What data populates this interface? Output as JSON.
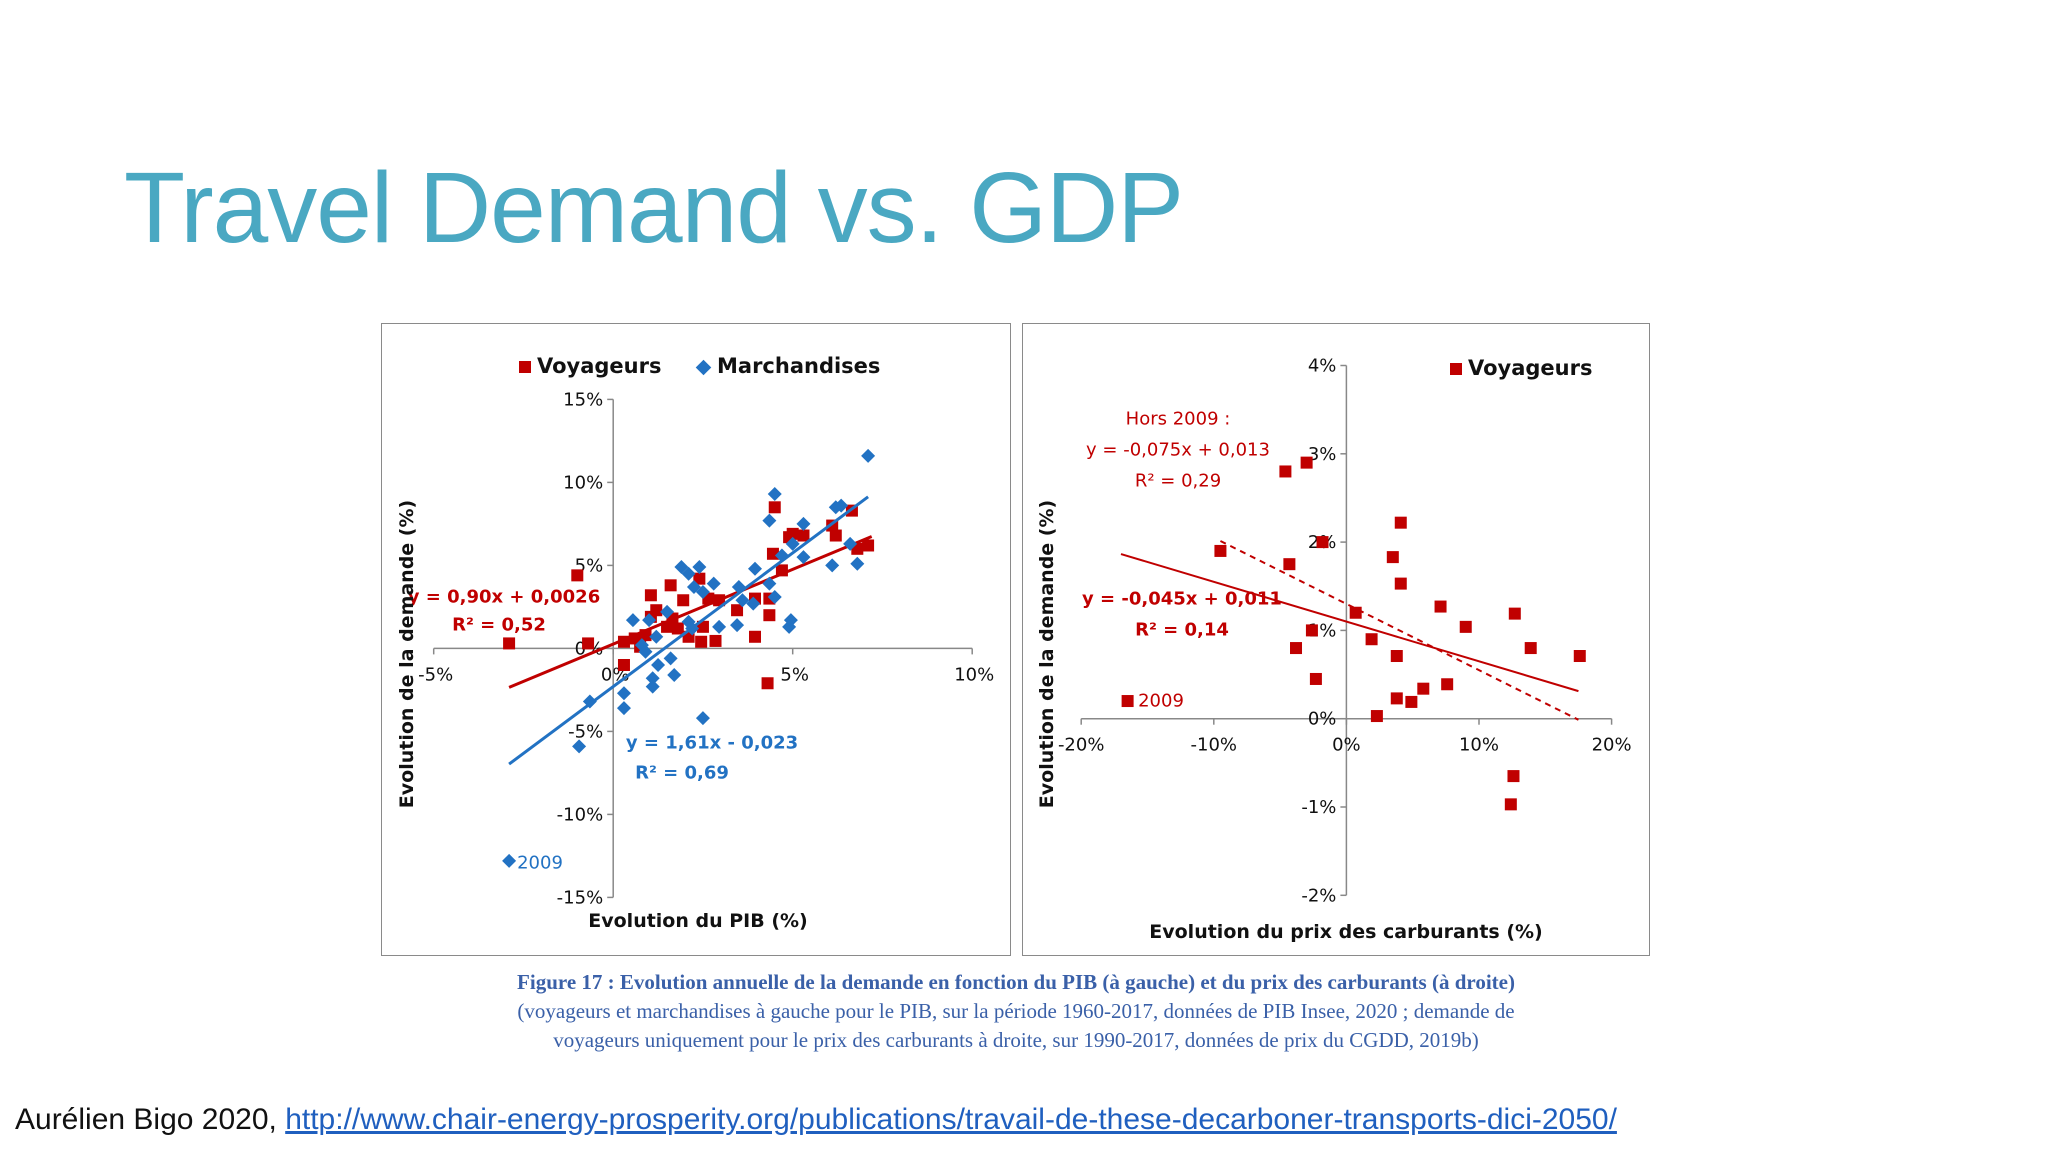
{
  "title": "Travel Demand vs. GDP",
  "caption": {
    "line1": "Figure 17 : Evolution annuelle de la demande en fonction du PIB (à gauche) et du prix des carburants (à droite)",
    "line2": "(voyageurs et marchandises à gauche pour le PIB, sur la période 1960-2017, données de PIB Insee, 2020 ; demande de",
    "line3": "voyageurs uniquement pour le prix des carburants à droite, sur 1990-2017, données de prix du CGDD, 2019b)"
  },
  "footer": {
    "credit": "Aurélien Bigo 2020, ",
    "link": "http://www.chair-energy-prosperity.org/publications/travail-de-these-decarboner-transports-dici-2050/"
  },
  "colors": {
    "title": "#4aa8c2",
    "voyageurs": "#c00000",
    "marchandises": "#2272c3",
    "caption": "#3a60a8"
  },
  "chart_data": [
    {
      "type": "scatter",
      "xlabel": "Evolution du PIB (%)",
      "ylabel": "Evolution de la demande (%)",
      "xlim": [
        -5,
        10
      ],
      "ylim": [
        -15,
        15
      ],
      "xticks": [
        "-5%",
        "0%",
        "5%",
        "10%"
      ],
      "yticks": [
        "-15%",
        "-10%",
        "-5%",
        "0%",
        "5%",
        "10%",
        "15%"
      ],
      "legend": "top",
      "series": [
        {
          "name": "Voyageurs",
          "marker": "square",
          "color": "#c00000",
          "points": [
            [
              -2.9,
              0.3
            ],
            [
              -1.0,
              4.4
            ],
            [
              -0.7,
              0.3
            ],
            [
              0.3,
              -1.0
            ],
            [
              0.3,
              0.4
            ],
            [
              0.6,
              0.6
            ],
            [
              0.9,
              0.8
            ],
            [
              0.75,
              0.1
            ],
            [
              1.05,
              3.2
            ],
            [
              1.05,
              1.9
            ],
            [
              1.2,
              2.3
            ],
            [
              1.6,
              3.8
            ],
            [
              1.5,
              1.3
            ],
            [
              1.65,
              1.8
            ],
            [
              1.8,
              1.2
            ],
            [
              1.95,
              2.9
            ],
            [
              2.1,
              0.7
            ],
            [
              2.4,
              4.2
            ],
            [
              2.5,
              1.3
            ],
            [
              2.45,
              0.4
            ],
            [
              2.65,
              3.0
            ],
            [
              2.85,
              0.45
            ],
            [
              2.95,
              2.9
            ],
            [
              3.45,
              2.3
            ],
            [
              3.95,
              3.0
            ],
            [
              3.95,
              0.7
            ],
            [
              4.35,
              2.0
            ],
            [
              4.3,
              -2.1
            ],
            [
              4.35,
              3.0
            ],
            [
              4.45,
              5.7
            ],
            [
              4.5,
              8.5
            ],
            [
              4.7,
              4.7
            ],
            [
              4.9,
              6.7
            ],
            [
              5.0,
              6.9
            ],
            [
              5.3,
              6.8
            ],
            [
              6.1,
              7.4
            ],
            [
              6.2,
              6.8
            ],
            [
              6.65,
              8.3
            ],
            [
              6.8,
              6.0
            ],
            [
              7.1,
              6.2
            ]
          ],
          "trend": {
            "slope": 0.9,
            "intercept": 0.26,
            "x_range": [
              -2.9,
              7.2
            ],
            "equation": "y = 0,90x + 0,0026",
            "r2": "R² = 0,52"
          }
        },
        {
          "name": "Marchandises",
          "marker": "diamond",
          "color": "#2272c3",
          "points": [
            [
              -2.9,
              -12.8
            ],
            [
              -0.95,
              -5.9
            ],
            [
              -0.65,
              -3.2
            ],
            [
              0.3,
              -2.7
            ],
            [
              0.3,
              -3.6
            ],
            [
              0.55,
              1.7
            ],
            [
              0.8,
              0.2
            ],
            [
              0.9,
              -0.2
            ],
            [
              1.1,
              -1.8
            ],
            [
              1.1,
              -2.3
            ],
            [
              1.25,
              -1.0
            ],
            [
              1.0,
              1.7
            ],
            [
              1.2,
              0.7
            ],
            [
              1.5,
              2.2
            ],
            [
              1.6,
              -0.6
            ],
            [
              1.7,
              -1.6
            ],
            [
              1.9,
              4.9
            ],
            [
              2.1,
              4.5
            ],
            [
              2.1,
              1.6
            ],
            [
              2.2,
              1.2
            ],
            [
              2.4,
              4.9
            ],
            [
              2.25,
              3.7
            ],
            [
              2.5,
              3.4
            ],
            [
              2.8,
              3.9
            ],
            [
              2.95,
              1.3
            ],
            [
              2.5,
              -4.2
            ],
            [
              3.45,
              1.4
            ],
            [
              3.5,
              3.7
            ],
            [
              3.6,
              2.9
            ],
            [
              3.9,
              2.7
            ],
            [
              3.95,
              4.8
            ],
            [
              4.35,
              7.7
            ],
            [
              4.5,
              9.3
            ],
            [
              4.35,
              3.9
            ],
            [
              4.5,
              3.1
            ],
            [
              4.7,
              5.6
            ],
            [
              4.9,
              1.3
            ],
            [
              4.95,
              1.7
            ],
            [
              5.0,
              6.3
            ],
            [
              5.3,
              5.5
            ],
            [
              5.3,
              7.5
            ],
            [
              6.1,
              5.0
            ],
            [
              6.2,
              8.5
            ],
            [
              6.35,
              8.6
            ],
            [
              6.6,
              6.3
            ],
            [
              6.8,
              5.1
            ],
            [
              7.1,
              11.6
            ]
          ],
          "trend": {
            "slope": 1.61,
            "intercept": -2.3,
            "x_range": [
              -2.9,
              7.1
            ],
            "equation": "y = 1,61x - 0,023",
            "r2": "R² = 0,69"
          }
        }
      ],
      "annotations": [
        {
          "text": "2009",
          "series": "Marchandises"
        }
      ]
    },
    {
      "type": "scatter",
      "xlabel": "Evolution du prix des carburants (%)",
      "ylabel": "Evolution de la demande (%)",
      "xlim": [
        -20,
        20
      ],
      "ylim": [
        -2,
        4
      ],
      "xticks": [
        "-20%",
        "-10%",
        "0%",
        "10%",
        "20%"
      ],
      "yticks": [
        "-2%",
        "-1%",
        "0%",
        "1%",
        "2%",
        "3%",
        "4%"
      ],
      "legend": "top-right",
      "series": [
        {
          "name": "Voyageurs",
          "marker": "square",
          "color": "#c00000",
          "points": [
            [
              -16.5,
              0.2
            ],
            [
              -9.5,
              1.9
            ],
            [
              -4.6,
              2.8
            ],
            [
              -3.0,
              2.9
            ],
            [
              -4.3,
              1.75
            ],
            [
              -1.8,
              2.0
            ],
            [
              -3.8,
              0.8
            ],
            [
              -2.6,
              1.0
            ],
            [
              -2.3,
              0.45
            ],
            [
              0.7,
              1.2
            ],
            [
              1.9,
              0.9
            ],
            [
              2.3,
              0.03
            ],
            [
              3.5,
              1.83
            ],
            [
              4.1,
              2.22
            ],
            [
              4.1,
              1.53
            ],
            [
              3.8,
              0.71
            ],
            [
              3.8,
              0.23
            ],
            [
              4.9,
              0.19
            ],
            [
              5.8,
              0.34
            ],
            [
              7.6,
              0.39
            ],
            [
              7.1,
              1.27
            ],
            [
              9.0,
              1.04
            ],
            [
              12.7,
              1.19
            ],
            [
              13.9,
              0.8
            ],
            [
              17.6,
              0.71
            ],
            [
              12.6,
              -0.65
            ],
            [
              12.4,
              -0.97
            ]
          ],
          "trend": {
            "slope": -0.045,
            "intercept": 1.1,
            "x_range": [
              -17,
              17.5
            ],
            "equation": "y = -0,045x + 0,011",
            "r2": "R² = 0,14",
            "style": "solid"
          },
          "trend_excl_2009": {
            "label": "Hors 2009 :",
            "slope": -0.075,
            "intercept": 1.3,
            "x_range": [
              -9.5,
              17.5
            ],
            "equation": "y = -0,075x + 0,013",
            "r2": "R² = 0,29",
            "style": "dashed"
          }
        }
      ],
      "annotations": [
        {
          "text": "2009",
          "series": "Voyageurs"
        }
      ]
    }
  ]
}
